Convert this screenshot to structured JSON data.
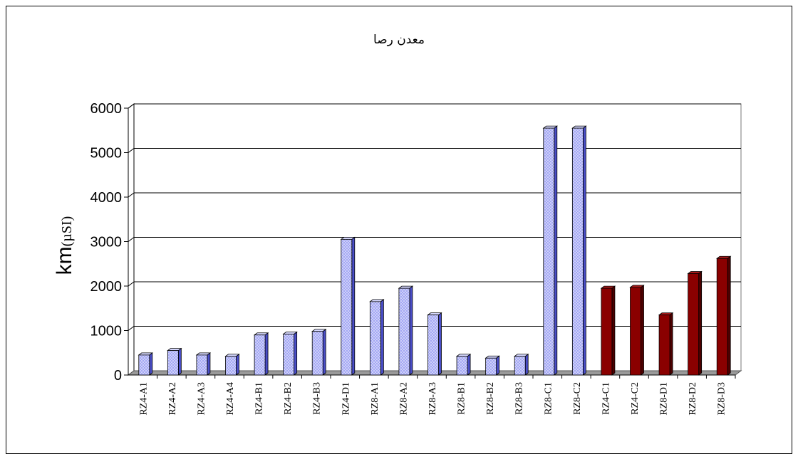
{
  "chart_data": {
    "type": "bar",
    "title": "معدن رصا",
    "ylabel": "km",
    "ylabel_unit": "(µSI)",
    "xlabel": "",
    "ylim": [
      0,
      6000
    ],
    "yticks": [
      0,
      1000,
      2000,
      3000,
      4000,
      5000,
      6000
    ],
    "grid": true,
    "categories": [
      "RZ4-A1",
      "RZ4-A2",
      "RZ4-A3",
      "RZ4-A4",
      "RZ4-B1",
      "RZ4-B2",
      "RZ4-B3",
      "RZ4-D1",
      "RZ8-A1",
      "RZ8-A2",
      "RZ8-A3",
      "RZ8-B1",
      "RZ8-B2",
      "RZ8-B3",
      "RZ8-C1",
      "RZ8-C2",
      "RZ4-C1",
      "RZ4-C2",
      "RZ8-D1",
      "RZ8-D2",
      "RZ8-D3"
    ],
    "values": [
      450,
      550,
      450,
      420,
      900,
      920,
      980,
      3050,
      1650,
      1950,
      1350,
      420,
      380,
      420,
      5550,
      5550,
      1950,
      1970,
      1350,
      2280,
      2620
    ],
    "bar_groups": [
      "blue",
      "blue",
      "blue",
      "blue",
      "blue",
      "blue",
      "blue",
      "blue",
      "blue",
      "blue",
      "blue",
      "blue",
      "blue",
      "blue",
      "blue",
      "blue",
      "red",
      "red",
      "red",
      "red",
      "red"
    ],
    "colors": {
      "blue_face": "#a4a8f4",
      "blue_dots": "#ffffff",
      "blue_side": "#4a4ec8",
      "blue_top": "#d6d8ff",
      "red_face": "#8a0000",
      "red_side": "#4d0000",
      "red_top": "#a61a1a",
      "floor": "#9a9a9a",
      "wall": "#ffffff"
    }
  }
}
